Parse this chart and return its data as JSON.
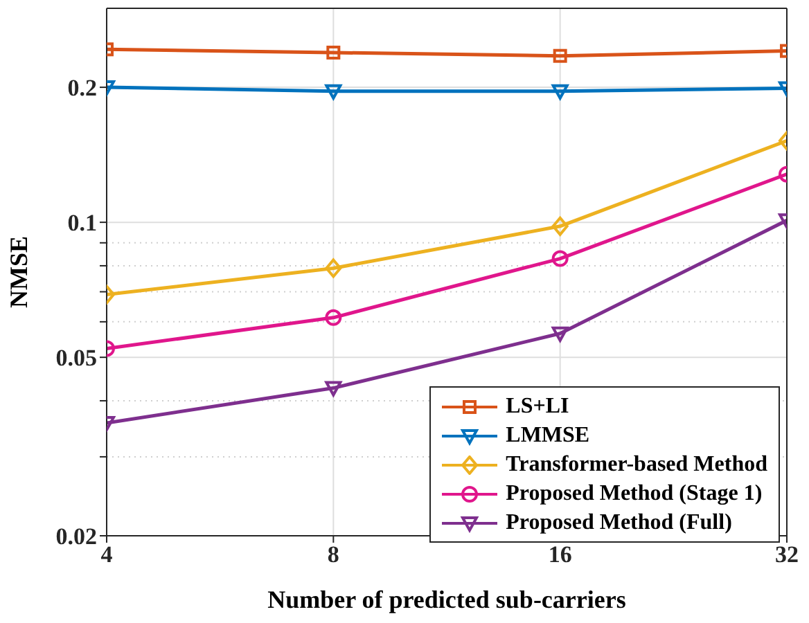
{
  "chart_data": {
    "type": "line",
    "xlabel": "Number of predicted sub-carriers",
    "ylabel": "NMSE",
    "x": [
      4,
      8,
      16,
      32
    ],
    "xlim": [
      4,
      32
    ],
    "xticks": [
      4,
      8,
      16,
      32
    ],
    "ylim": [
      0.02,
      0.3
    ],
    "yticks": [
      0.02,
      {
        "value": 0.03,
        "label": null
      },
      {
        "value": 0.04,
        "label": null
      },
      0.05,
      {
        "value": 0.06,
        "label": null
      },
      {
        "value": 0.07,
        "label": null
      },
      {
        "value": 0.08,
        "label": null
      },
      {
        "value": 0.09,
        "label": null
      },
      0.1,
      0.2
    ],
    "log": "xy",
    "grid": true,
    "legend": "bottom right",
    "line_style": "solid",
    "series": [
      {
        "name": "LS+LI",
        "color": "#d95319",
        "marker": "square",
        "values": [
          0.243,
          0.239,
          0.235,
          0.241
        ]
      },
      {
        "name": "LMMSE",
        "color": "#0072bd",
        "marker": "triangle",
        "values": [
          0.2,
          0.196,
          0.196,
          0.199
        ]
      },
      {
        "name": "Transformer-based Method",
        "color": "#edb120",
        "marker": "diamond",
        "values": [
          0.069,
          0.079,
          0.098,
          0.152
        ]
      },
      {
        "name": "Proposed Method (Stage 1)",
        "color": "#e0168c",
        "marker": "circle",
        "values": [
          0.0523,
          0.0613,
          0.083,
          0.128
        ]
      },
      {
        "name": "Proposed Method (Full)",
        "color": "#7e2f8e",
        "marker": "triangle",
        "values": [
          0.0357,
          0.0427,
          0.0565,
          0.101
        ]
      }
    ]
  }
}
